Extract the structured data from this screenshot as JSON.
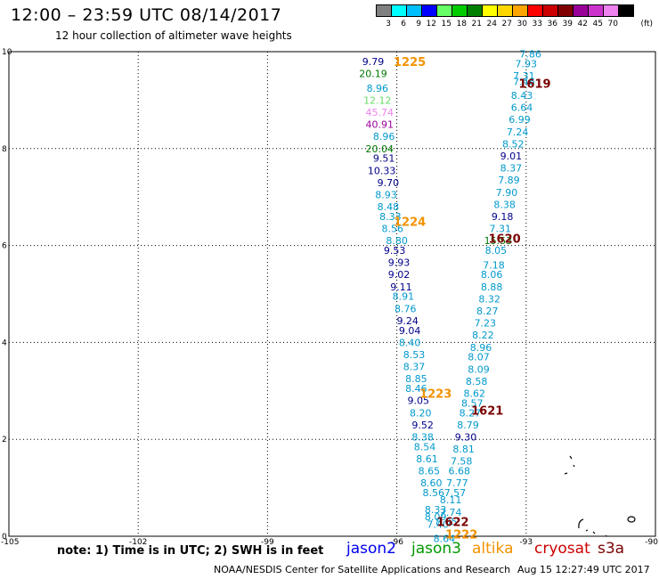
{
  "header": {
    "title": "12:00 – 23:59 UTC 08/14/2017",
    "subtitle": "12 hour collection of altimeter wave heights"
  },
  "legend": {
    "unit": "(ft)",
    "bins": [
      {
        "label": "3",
        "color": "#808080"
      },
      {
        "label": "6",
        "color": "#00ffff"
      },
      {
        "label": "9",
        "color": "#00bfff"
      },
      {
        "label": "12",
        "color": "#0000ff"
      },
      {
        "label": "15",
        "color": "#66ff66"
      },
      {
        "label": "18",
        "color": "#00cc00"
      },
      {
        "label": "21",
        "color": "#008000"
      },
      {
        "label": "24",
        "color": "#ffff00"
      },
      {
        "label": "27",
        "color": "#ffd700"
      },
      {
        "label": "30",
        "color": "#ffa500"
      },
      {
        "label": "33",
        "color": "#ff0000"
      },
      {
        "label": "36",
        "color": "#cc0000"
      },
      {
        "label": "39",
        "color": "#800000"
      },
      {
        "label": "42",
        "color": "#990099"
      },
      {
        "label": "45",
        "color": "#cc33cc"
      },
      {
        "label": "70",
        "color": "#ee82ee"
      },
      {
        "label": "",
        "color": "#000000"
      }
    ]
  },
  "axes": {
    "lon_ticks": [
      -105,
      -102,
      -99,
      -96,
      -93,
      -90
    ],
    "lat_ticks": [
      0,
      2,
      4,
      6,
      8,
      10
    ]
  },
  "pass_labels": [
    {
      "text": "1225",
      "lon": -95.7,
      "lat": 9.8,
      "color": "#f39200"
    },
    {
      "text": "1224",
      "lon": -95.7,
      "lat": 6.5,
      "color": "#f39200"
    },
    {
      "text": "1223",
      "lon": -95.1,
      "lat": 2.95,
      "color": "#f39200"
    },
    {
      "text": "1222",
      "lon": -94.5,
      "lat": 0.05,
      "color": "#f39200"
    },
    {
      "text": "1619",
      "lon": -92.8,
      "lat": 9.35,
      "color": "#7a0000"
    },
    {
      "text": "1620",
      "lon": -93.5,
      "lat": 6.15,
      "color": "#7a0000"
    },
    {
      "text": "1621",
      "lon": -93.9,
      "lat": 2.6,
      "color": "#7a0000"
    },
    {
      "text": "1622",
      "lon": -94.7,
      "lat": 0.3,
      "color": "#7a0000"
    }
  ],
  "swh_points": [
    {
      "v": "9.79",
      "lon": -96.55,
      "lat": 9.8,
      "c": "#00008b"
    },
    {
      "v": "20.19",
      "lon": -96.55,
      "lat": 9.55,
      "c": "#007700"
    },
    {
      "v": "8.96",
      "lon": -96.45,
      "lat": 9.25,
      "c": "#0099cc"
    },
    {
      "v": "12.12",
      "lon": -96.45,
      "lat": 9.0,
      "c": "#66dd66"
    },
    {
      "v": "45.74",
      "lon": -96.4,
      "lat": 8.75,
      "c": "#ee82ee"
    },
    {
      "v": "40.91",
      "lon": -96.4,
      "lat": 8.5,
      "c": "#990099"
    },
    {
      "v": "8.96",
      "lon": -96.3,
      "lat": 8.25,
      "c": "#0099cc"
    },
    {
      "v": "20.04",
      "lon": -96.4,
      "lat": 8.0,
      "c": "#007700"
    },
    {
      "v": "9.51",
      "lon": -96.3,
      "lat": 7.8,
      "c": "#00008b"
    },
    {
      "v": "10.33",
      "lon": -96.35,
      "lat": 7.55,
      "c": "#00008b"
    },
    {
      "v": "9.70",
      "lon": -96.2,
      "lat": 7.3,
      "c": "#00008b"
    },
    {
      "v": "8.93",
      "lon": -96.25,
      "lat": 7.05,
      "c": "#0099cc"
    },
    {
      "v": "8.48",
      "lon": -96.2,
      "lat": 6.8,
      "c": "#0099cc"
    },
    {
      "v": "8.33",
      "lon": -96.15,
      "lat": 6.6,
      "c": "#0099cc"
    },
    {
      "v": "8.56",
      "lon": -96.1,
      "lat": 6.35,
      "c": "#0099cc"
    },
    {
      "v": "8.80",
      "lon": -96.0,
      "lat": 6.1,
      "c": "#0099cc"
    },
    {
      "v": "9.53",
      "lon": -96.05,
      "lat": 5.9,
      "c": "#00008b"
    },
    {
      "v": "9.93",
      "lon": -95.95,
      "lat": 5.65,
      "c": "#00008b"
    },
    {
      "v": "9.02",
      "lon": -95.95,
      "lat": 5.4,
      "c": "#00008b"
    },
    {
      "v": "9.11",
      "lon": -95.9,
      "lat": 5.15,
      "c": "#00008b"
    },
    {
      "v": "8.91",
      "lon": -95.85,
      "lat": 4.95,
      "c": "#0099cc"
    },
    {
      "v": "8.76",
      "lon": -95.8,
      "lat": 4.7,
      "c": "#0099cc"
    },
    {
      "v": "9.24",
      "lon": -95.75,
      "lat": 4.45,
      "c": "#00008b"
    },
    {
      "v": "9.04",
      "lon": -95.7,
      "lat": 4.25,
      "c": "#00008b"
    },
    {
      "v": "8.40",
      "lon": -95.7,
      "lat": 4.0,
      "c": "#0099cc"
    },
    {
      "v": "8.53",
      "lon": -95.6,
      "lat": 3.75,
      "c": "#0099cc"
    },
    {
      "v": "8.37",
      "lon": -95.6,
      "lat": 3.5,
      "c": "#0099cc"
    },
    {
      "v": "8.85",
      "lon": -95.55,
      "lat": 3.25,
      "c": "#0099cc"
    },
    {
      "v": "8.46",
      "lon": -95.55,
      "lat": 3.05,
      "c": "#0099cc"
    },
    {
      "v": "9.05",
      "lon": -95.5,
      "lat": 2.8,
      "c": "#00008b"
    },
    {
      "v": "8.20",
      "lon": -95.45,
      "lat": 2.55,
      "c": "#0099cc"
    },
    {
      "v": "9.52",
      "lon": -95.4,
      "lat": 2.3,
      "c": "#00008b"
    },
    {
      "v": "8.38",
      "lon": -95.4,
      "lat": 2.05,
      "c": "#0099cc"
    },
    {
      "v": "8.54",
      "lon": -95.35,
      "lat": 1.85,
      "c": "#0099cc"
    },
    {
      "v": "8.61",
      "lon": -95.3,
      "lat": 1.6,
      "c": "#0099cc"
    },
    {
      "v": "8.65",
      "lon": -95.25,
      "lat": 1.35,
      "c": "#0099cc"
    },
    {
      "v": "8.60",
      "lon": -95.2,
      "lat": 1.1,
      "c": "#0099cc"
    },
    {
      "v": "8.56",
      "lon": -95.15,
      "lat": 0.9,
      "c": "#0099cc"
    },
    {
      "v": "8.33",
      "lon": -95.1,
      "lat": 0.55,
      "c": "#0099cc"
    },
    {
      "v": "8.09",
      "lon": -95.1,
      "lat": 0.4,
      "c": "#0099cc"
    },
    {
      "v": "7.40",
      "lon": -95.05,
      "lat": 0.25,
      "c": "#0099cc"
    },
    {
      "v": "7.86",
      "lon": -92.9,
      "lat": 9.95,
      "c": "#0099cc"
    },
    {
      "v": "7.93",
      "lon": -93.0,
      "lat": 9.75,
      "c": "#0099cc"
    },
    {
      "v": "7.31",
      "lon": -93.05,
      "lat": 9.5,
      "c": "#0099cc"
    },
    {
      "v": "7.46",
      "lon": -93.05,
      "lat": 9.38,
      "c": "#0099cc"
    },
    {
      "v": "8.43",
      "lon": -93.1,
      "lat": 9.1,
      "c": "#0099cc"
    },
    {
      "v": "6.64",
      "lon": -93.1,
      "lat": 8.85,
      "c": "#0099cc"
    },
    {
      "v": "6.99",
      "lon": -93.15,
      "lat": 8.6,
      "c": "#0099cc"
    },
    {
      "v": "7.24",
      "lon": -93.2,
      "lat": 8.35,
      "c": "#0099cc"
    },
    {
      "v": "8.52",
      "lon": -93.3,
      "lat": 8.1,
      "c": "#0099cc"
    },
    {
      "v": "9.01",
      "lon": -93.35,
      "lat": 7.85,
      "c": "#00008b"
    },
    {
      "v": "8.37",
      "lon": -93.35,
      "lat": 7.6,
      "c": "#0099cc"
    },
    {
      "v": "7.89",
      "lon": -93.4,
      "lat": 7.35,
      "c": "#0099cc"
    },
    {
      "v": "7.90",
      "lon": -93.45,
      "lat": 7.1,
      "c": "#0099cc"
    },
    {
      "v": "8.38",
      "lon": -93.5,
      "lat": 6.85,
      "c": "#0099cc"
    },
    {
      "v": "9.18",
      "lon": -93.55,
      "lat": 6.6,
      "c": "#00008b"
    },
    {
      "v": "7.31",
      "lon": -93.6,
      "lat": 6.35,
      "c": "#0099cc"
    },
    {
      "v": "15.53",
      "lon": -93.65,
      "lat": 6.1,
      "c": "#007700"
    },
    {
      "v": "8.05",
      "lon": -93.7,
      "lat": 5.9,
      "c": "#0099cc"
    },
    {
      "v": "7.18",
      "lon": -93.75,
      "lat": 5.6,
      "c": "#0099cc"
    },
    {
      "v": "8.06",
      "lon": -93.8,
      "lat": 5.4,
      "c": "#0099cc"
    },
    {
      "v": "8.88",
      "lon": -93.8,
      "lat": 5.15,
      "c": "#0099cc"
    },
    {
      "v": "8.32",
      "lon": -93.85,
      "lat": 4.9,
      "c": "#0099cc"
    },
    {
      "v": "8.27",
      "lon": -93.9,
      "lat": 4.65,
      "c": "#0099cc"
    },
    {
      "v": "7.23",
      "lon": -93.95,
      "lat": 4.4,
      "c": "#0099cc"
    },
    {
      "v": "8.22",
      "lon": -94.0,
      "lat": 4.15,
      "c": "#0099cc"
    },
    {
      "v": "8.96",
      "lon": -94.05,
      "lat": 3.9,
      "c": "#0099cc"
    },
    {
      "v": "8.07",
      "lon": -94.1,
      "lat": 3.7,
      "c": "#0099cc"
    },
    {
      "v": "8.09",
      "lon": -94.1,
      "lat": 3.45,
      "c": "#0099cc"
    },
    {
      "v": "8.58",
      "lon": -94.15,
      "lat": 3.2,
      "c": "#0099cc"
    },
    {
      "v": "8.62",
      "lon": -94.2,
      "lat": 2.95,
      "c": "#0099cc"
    },
    {
      "v": "8.57",
      "lon": -94.25,
      "lat": 2.75,
      "c": "#0099cc"
    },
    {
      "v": "8.27",
      "lon": -94.3,
      "lat": 2.55,
      "c": "#0099cc"
    },
    {
      "v": "8.79",
      "lon": -94.35,
      "lat": 2.3,
      "c": "#0099cc"
    },
    {
      "v": "9.30",
      "lon": -94.4,
      "lat": 2.05,
      "c": "#00008b"
    },
    {
      "v": "8.81",
      "lon": -94.45,
      "lat": 1.8,
      "c": "#0099cc"
    },
    {
      "v": "7.58",
      "lon": -94.5,
      "lat": 1.55,
      "c": "#0099cc"
    },
    {
      "v": "6.68",
      "lon": -94.55,
      "lat": 1.35,
      "c": "#0099cc"
    },
    {
      "v": "7.77",
      "lon": -94.6,
      "lat": 1.1,
      "c": "#0099cc"
    },
    {
      "v": "7.57",
      "lon": -94.65,
      "lat": 0.9,
      "c": "#0099cc"
    },
    {
      "v": "8.11",
      "lon": -94.75,
      "lat": 0.75,
      "c": "#0099cc"
    },
    {
      "v": "7.74",
      "lon": -94.75,
      "lat": 0.5,
      "c": "#0099cc"
    },
    {
      "v": "8.05",
      "lon": -94.85,
      "lat": 0.3,
      "c": "#0099cc"
    },
    {
      "v": "8.64",
      "lon": -94.9,
      "lat": -0.05,
      "c": "#0099cc"
    }
  ],
  "footer": {
    "note": "note: 1) Time is in UTC; 2) SWH is in feet",
    "missions": [
      {
        "name": "jason2",
        "color": "#0000ee"
      },
      {
        "name": "jason3",
        "color": "#009900"
      },
      {
        "name": "altika",
        "color": "#f39200"
      },
      {
        "name": "cryosat",
        "color": "#cc0000"
      },
      {
        "name": "s3a",
        "color": "#7a0000"
      }
    ],
    "credit": "NOAA/NESDIS Center for Satellite Applications and Research",
    "timestamp": "Aug 15 12:27:49 UTC 2017"
  }
}
